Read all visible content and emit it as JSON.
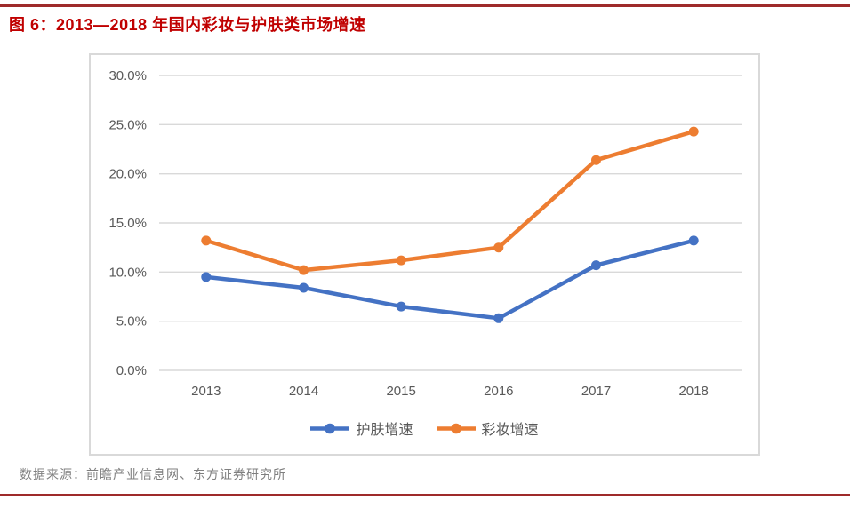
{
  "page": {
    "title": "图 6：2013—2018 年国内彩妆与护肤类市场增速",
    "source": "数据来源：前瞻产业信息网、东方证券研究所",
    "title_color": "#c00000",
    "rule_color": "#9e2a2a"
  },
  "chart_data": {
    "type": "line",
    "title": "2013—2018 年国内彩妆与护肤类市场增速",
    "categories": [
      "2013",
      "2014",
      "2015",
      "2016",
      "2017",
      "2018"
    ],
    "series": [
      {
        "name": "护肤增速",
        "color": "#4472c4",
        "values": [
          9.5,
          8.4,
          6.5,
          5.3,
          10.7,
          13.2
        ]
      },
      {
        "name": "彩妆增速",
        "color": "#ed7d31",
        "values": [
          13.2,
          10.2,
          11.2,
          12.5,
          21.4,
          24.3
        ]
      }
    ],
    "xlabel": "",
    "ylabel": "",
    "ylim": [
      0,
      30
    ],
    "ytick_step": 5,
    "ytick_labels": [
      "0.0%",
      "5.0%",
      "10.0%",
      "15.0%",
      "20.0%",
      "25.0%",
      "30.0%"
    ],
    "grid": true,
    "gridline_color": "#d9d9d9",
    "tick_label_color": "#595959",
    "legend_position": "bottom"
  }
}
